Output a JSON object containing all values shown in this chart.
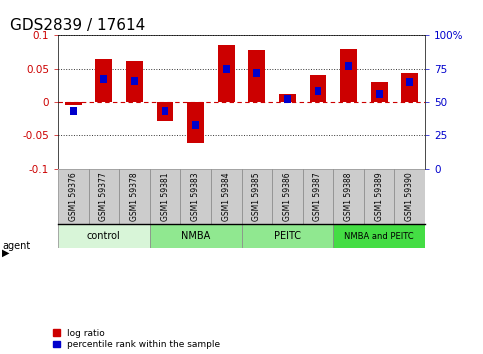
{
  "title": "GDS2839 / 17614",
  "samples": [
    "GSM1 59376",
    "GSM1 59377",
    "GSM1 59378",
    "GSM1 59381",
    "GSM1 59383",
    "GSM1 59384",
    "GSM1 59385",
    "GSM1 59386",
    "GSM1 59387",
    "GSM1 59388",
    "GSM1 59389",
    "GSM1 59390"
  ],
  "log_ratio": [
    -0.005,
    0.065,
    0.062,
    -0.028,
    -0.062,
    0.085,
    0.078,
    0.012,
    0.04,
    0.08,
    0.03,
    0.043
  ],
  "percentile_rank": [
    43,
    67,
    66,
    43,
    33,
    75,
    72,
    52,
    58,
    77,
    56,
    65
  ],
  "agents": [
    {
      "label": "control",
      "start": 0,
      "end": 3,
      "color": "#d8f5d8"
    },
    {
      "label": "NMBA",
      "start": 3,
      "end": 6,
      "color": "#90e890"
    },
    {
      "label": "PEITC",
      "start": 6,
      "end": 9,
      "color": "#90e890"
    },
    {
      "label": "NMBA and PEITC",
      "start": 9,
      "end": 12,
      "color": "#44dd44"
    }
  ],
  "ylim": [
    -0.1,
    0.1
  ],
  "yticks_left": [
    -0.1,
    -0.05,
    0,
    0.05,
    0.1
  ],
  "yticks_right": [
    0,
    25,
    50,
    75,
    100
  ],
  "bar_width": 0.55,
  "pct_bar_width": 0.22,
  "log_ratio_color": "#cc0000",
  "percentile_color": "#0000cc",
  "zero_line_color": "#cc0000",
  "dotted_line_color": "#333333",
  "background_color": "#ffffff",
  "plot_bg_color": "#ffffff",
  "sample_box_color": "#cccccc",
  "title_fontsize": 11
}
